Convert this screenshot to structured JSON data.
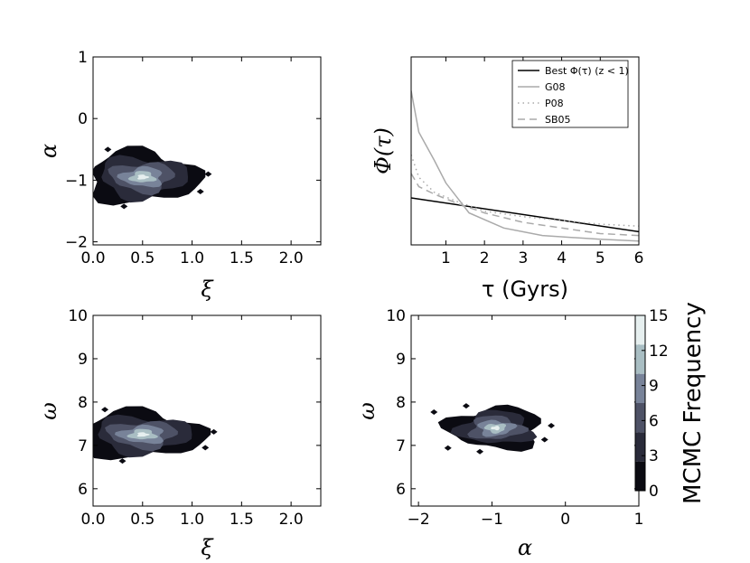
{
  "chart_data": [
    {
      "type": "contour",
      "panel": "top-left",
      "xlabel": "ξ",
      "ylabel": "α",
      "xlim": [
        0,
        2.3
      ],
      "ylim": [
        -2.05,
        1.0
      ],
      "xticks": [
        "0.0",
        "0.5",
        "1.0",
        "1.5",
        "2.0"
      ],
      "xtick_values": [
        0,
        0.5,
        1.0,
        1.5,
        2.0
      ],
      "yticks": [
        "−2",
        "−1",
        "0",
        "1"
      ],
      "ytick_values": [
        -2,
        -1,
        0,
        1
      ],
      "peak": {
        "x": 0.5,
        "y": -0.95
      },
      "spread": {
        "x": 0.35,
        "y": 0.35
      }
    },
    {
      "type": "line",
      "panel": "top-right",
      "xlabel": "τ (Gyrs)",
      "ylabel": "Φ(τ)",
      "xlim": [
        0.1,
        6
      ],
      "ylim": [
        0,
        1
      ],
      "xticks": [
        "1",
        "2",
        "3",
        "4",
        "5",
        "6"
      ],
      "xtick_values": [
        1,
        2,
        3,
        4,
        5,
        6
      ],
      "legend_position": "top-right",
      "series": [
        {
          "name": "Best Φ(τ) (z < 1)",
          "style": "solid",
          "color": "#000000",
          "x": [
            0.1,
            6
          ],
          "y": [
            0.25,
            0.07
          ]
        },
        {
          "name": "G08",
          "style": "solid",
          "color": "#aaaaaa",
          "x": [
            0.1,
            0.3,
            0.7,
            1.0,
            1.6,
            2.5,
            3.5,
            5.0,
            6.0
          ],
          "y": [
            0.82,
            0.6,
            0.45,
            0.33,
            0.17,
            0.09,
            0.05,
            0.03,
            0.02
          ]
        },
        {
          "name": "P08",
          "style": "dotted",
          "color": "#aaaaaa",
          "x": [
            0.1,
            0.3,
            0.7,
            1.3,
            2.0,
            3.0,
            4.0,
            5.0,
            6.0
          ],
          "y": [
            0.48,
            0.36,
            0.28,
            0.23,
            0.18,
            0.15,
            0.13,
            0.11,
            0.1
          ]
        },
        {
          "name": "SB05",
          "style": "dashed",
          "color": "#aaaaaa",
          "x": [
            0.1,
            0.3,
            0.7,
            1.3,
            2.0,
            3.0,
            4.0,
            5.0,
            6.0
          ],
          "y": [
            0.38,
            0.31,
            0.27,
            0.22,
            0.17,
            0.12,
            0.09,
            0.06,
            0.05
          ]
        }
      ]
    },
    {
      "type": "contour",
      "panel": "bottom-left",
      "xlabel": "ξ",
      "ylabel": "ω",
      "xlim": [
        0,
        2.3
      ],
      "ylim": [
        5.6,
        10
      ],
      "xticks": [
        "0.0",
        "0.5",
        "1.0",
        "1.5",
        "2.0"
      ],
      "xtick_values": [
        0,
        0.5,
        1.0,
        1.5,
        2.0
      ],
      "yticks": [
        "6",
        "7",
        "8",
        "9",
        "10"
      ],
      "ytick_values": [
        6,
        7,
        8,
        9,
        10
      ],
      "peak": {
        "x": 0.5,
        "y": 7.25
      },
      "spread": {
        "x": 0.38,
        "y": 0.45
      }
    },
    {
      "type": "contour",
      "panel": "bottom-right",
      "xlabel": "α",
      "ylabel": "ω",
      "xlim": [
        -2.1,
        1.0
      ],
      "ylim": [
        5.6,
        10
      ],
      "xticks": [
        "−2",
        "−1",
        "0",
        "1"
      ],
      "xtick_values": [
        -2,
        -1,
        0,
        1
      ],
      "yticks": [
        "6",
        "7",
        "8",
        "9",
        "10"
      ],
      "ytick_values": [
        6,
        7,
        8,
        9,
        10
      ],
      "peak": {
        "x": -0.95,
        "y": 7.4
      },
      "spread": {
        "x": 0.4,
        "y": 0.4
      }
    }
  ],
  "colorbar": {
    "label": "MCMC Frequency",
    "ticks": [
      "0",
      "3",
      "6",
      "9",
      "12",
      "15"
    ],
    "tick_values": [
      0,
      3,
      6,
      9,
      12,
      15
    ],
    "colors": [
      "#0b0b12",
      "#2a2b3a",
      "#4e5266",
      "#788399",
      "#a9bec3",
      "#e6efef"
    ]
  }
}
